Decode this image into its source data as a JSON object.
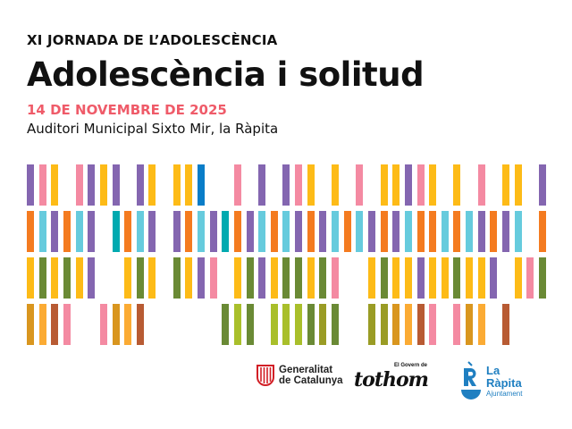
{
  "header": {
    "supertitle": "XI JORNADA DE L’ADOLESCÈNCIA",
    "title": "Adolescència i solitud",
    "date": "14 DE NOVEMBRE DE 2025",
    "venue": "Auditori Municipal Sixto Mir, la Ràpita"
  },
  "colors": {
    "date": "#ef5b69",
    "palette": {
      "P": "#8466b0",
      "K": "#f48aa2",
      "Y": "#fdbb17",
      "B": "#0a7dc8",
      "O": "#f47b20",
      "C": "#66cbdd",
      "T": "#00aab0",
      "G": "#6a8a35",
      "D": "#d9961f",
      "A": "#fbab34",
      "R": "#b85b33",
      "L": "#a9bf2b",
      "V": "#9a9c25"
    }
  },
  "bar_pattern": [
    "PKY.KPYP.PY.YYB..K.P.PKY.Y.K.YYPKY.Y.K.YY.P",
    "OCPOCP.TOCP.POCPTOPCOCPOPCOCPOPCOOCOCPOPC.O",
    "YGYGYP..YGY.GYPK.YGPYGGYGK..YGYYPYYGYYP.YKGY",
    "DARK..KDAR......GLG.LLLGVG..VVDARK.KDA.R...."
  ],
  "logos": {
    "generalitat": {
      "line1": "Generalitat",
      "line2": "de Catalunya",
      "icon": "senyera-shield-icon"
    },
    "govern": {
      "small": "El Govern de",
      "word": "tothom",
      "icon": "tothom-wordmark"
    },
    "rapita": {
      "line1": "La",
      "line2": "Ràpita",
      "line3": "Ajuntament",
      "icon": "rapita-bowl-icon"
    }
  }
}
